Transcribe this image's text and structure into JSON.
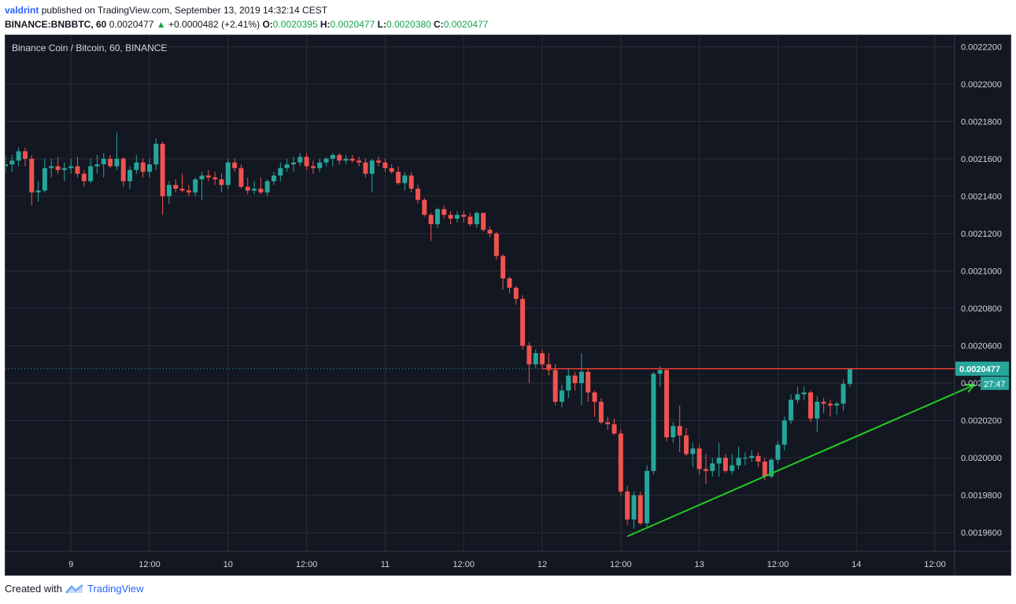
{
  "header": {
    "author": "valdrint",
    "published_text": "published on TradingView.com, September 13, 2019 14:32:14 CEST",
    "symbol": "BINANCE:BNBBTC, 60",
    "last_price": "0.0020477",
    "change_arrow": "▲",
    "change": "+0.0000482 (+2.41%)",
    "open_label": "O:",
    "open_value": "0.0020395",
    "high_label": "H:",
    "high_value": "0.0020477",
    "low_label": "L:",
    "low_value": "0.0020380",
    "close_label": "C:",
    "close_value": "0.0020477"
  },
  "footer": {
    "created_with": "Created with",
    "brand": "TradingView"
  },
  "colors": {
    "background": "#131722",
    "grid": "#2a2e39",
    "up_candle": "#26a69a",
    "down_candle": "#ef5350",
    "resistance": "#e53935",
    "support": "#22cc22",
    "last_price_line": "#26a69a",
    "axis_text": "#d1d4dc"
  },
  "chart_data": {
    "type": "candlestick",
    "title": "Binance Coin / Bitcoin, 60, BINANCE",
    "ylim": [
      0.00195,
      0.002226
    ],
    "y_ticks": [
      "0.0019600",
      "0.0019800",
      "0.0020000",
      "0.0020200",
      "0.0020400",
      "0.0020600",
      "0.0020800",
      "0.0021000",
      "0.0021200",
      "0.0021400",
      "0.0021600",
      "0.0021800",
      "0.0022000",
      "0.0022200"
    ],
    "x_ticks": [
      {
        "label": "9",
        "t": 0
      },
      {
        "label": "12:00",
        "t": 12
      },
      {
        "label": "10",
        "t": 24
      },
      {
        "label": "12:00",
        "t": 36
      },
      {
        "label": "11",
        "t": 48
      },
      {
        "label": "12:00",
        "t": 60
      },
      {
        "label": "12",
        "t": 72
      },
      {
        "label": "12:00",
        "t": 84
      },
      {
        "label": "13",
        "t": 96
      },
      {
        "label": "12:00",
        "t": 108
      },
      {
        "label": "14",
        "t": 120
      },
      {
        "label": "12:00",
        "t": 132
      }
    ],
    "x_range": [
      -10,
      135
    ],
    "candles": [
      {
        "t": -10,
        "o": 0.002156,
        "h": 0.002162,
        "l": 0.002152,
        "c": 0.002157
      },
      {
        "t": -9,
        "o": 0.002157,
        "h": 0.002162,
        "l": 0.002153,
        "c": 0.002159
      },
      {
        "t": -8,
        "o": 0.002159,
        "h": 0.002166,
        "l": 0.002156,
        "c": 0.002164
      },
      {
        "t": -7,
        "o": 0.002164,
        "h": 0.002166,
        "l": 0.002156,
        "c": 0.00216
      },
      {
        "t": -6,
        "o": 0.00216,
        "h": 0.002162,
        "l": 0.002135,
        "c": 0.002142
      },
      {
        "t": -5,
        "o": 0.002142,
        "h": 0.002148,
        "l": 0.002137,
        "c": 0.002143
      },
      {
        "t": -4,
        "o": 0.002143,
        "h": 0.00216,
        "l": 0.002142,
        "c": 0.002155
      },
      {
        "t": -3,
        "o": 0.002155,
        "h": 0.00216,
        "l": 0.00215,
        "c": 0.002156
      },
      {
        "t": -2,
        "o": 0.002156,
        "h": 0.002161,
        "l": 0.002152,
        "c": 0.002154
      },
      {
        "t": -1,
        "o": 0.002154,
        "h": 0.002158,
        "l": 0.002148,
        "c": 0.002155
      },
      {
        "t": 0,
        "o": 0.002155,
        "h": 0.00216,
        "l": 0.002152,
        "c": 0.002156
      },
      {
        "t": 1,
        "o": 0.002156,
        "h": 0.002161,
        "l": 0.00215,
        "c": 0.002152
      },
      {
        "t": 2,
        "o": 0.002152,
        "h": 0.002154,
        "l": 0.002145,
        "c": 0.002148
      },
      {
        "t": 3,
        "o": 0.002148,
        "h": 0.00216,
        "l": 0.002147,
        "c": 0.002156
      },
      {
        "t": 4,
        "o": 0.002156,
        "h": 0.002162,
        "l": 0.002152,
        "c": 0.002157
      },
      {
        "t": 5,
        "o": 0.002157,
        "h": 0.002163,
        "l": 0.00215,
        "c": 0.00216
      },
      {
        "t": 6,
        "o": 0.00216,
        "h": 0.002162,
        "l": 0.002155,
        "c": 0.002156
      },
      {
        "t": 7,
        "o": 0.002156,
        "h": 0.002174,
        "l": 0.002154,
        "c": 0.00216
      },
      {
        "t": 8,
        "o": 0.00216,
        "h": 0.002161,
        "l": 0.002145,
        "c": 0.002148
      },
      {
        "t": 9,
        "o": 0.002148,
        "h": 0.002156,
        "l": 0.002144,
        "c": 0.002154
      },
      {
        "t": 10,
        "o": 0.002154,
        "h": 0.002162,
        "l": 0.002152,
        "c": 0.002158
      },
      {
        "t": 11,
        "o": 0.002158,
        "h": 0.00216,
        "l": 0.00215,
        "c": 0.002153
      },
      {
        "t": 12,
        "o": 0.002153,
        "h": 0.00216,
        "l": 0.00215,
        "c": 0.002157
      },
      {
        "t": 13,
        "o": 0.002157,
        "h": 0.002171,
        "l": 0.002154,
        "c": 0.002168
      },
      {
        "t": 14,
        "o": 0.002168,
        "h": 0.002169,
        "l": 0.00213,
        "c": 0.00214
      },
      {
        "t": 15,
        "o": 0.00214,
        "h": 0.002148,
        "l": 0.002136,
        "c": 0.002146
      },
      {
        "t": 16,
        "o": 0.002146,
        "h": 0.002149,
        "l": 0.002142,
        "c": 0.002144
      },
      {
        "t": 17,
        "o": 0.002144,
        "h": 0.002152,
        "l": 0.002142,
        "c": 0.002143
      },
      {
        "t": 18,
        "o": 0.002143,
        "h": 0.002146,
        "l": 0.00214,
        "c": 0.002142
      },
      {
        "t": 19,
        "o": 0.002142,
        "h": 0.00215,
        "l": 0.00214,
        "c": 0.002149
      },
      {
        "t": 20,
        "o": 0.002149,
        "h": 0.002153,
        "l": 0.002138,
        "c": 0.002151
      },
      {
        "t": 21,
        "o": 0.002151,
        "h": 0.002154,
        "l": 0.002148,
        "c": 0.00215
      },
      {
        "t": 22,
        "o": 0.00215,
        "h": 0.002153,
        "l": 0.002146,
        "c": 0.002149
      },
      {
        "t": 23,
        "o": 0.002149,
        "h": 0.002152,
        "l": 0.002142,
        "c": 0.002146
      },
      {
        "t": 24,
        "o": 0.002146,
        "h": 0.00216,
        "l": 0.002144,
        "c": 0.002158
      },
      {
        "t": 25,
        "o": 0.002158,
        "h": 0.00216,
        "l": 0.002153,
        "c": 0.002155
      },
      {
        "t": 26,
        "o": 0.002155,
        "h": 0.002157,
        "l": 0.002144,
        "c": 0.002145
      },
      {
        "t": 27,
        "o": 0.002145,
        "h": 0.00215,
        "l": 0.002141,
        "c": 0.002143
      },
      {
        "t": 28,
        "o": 0.002143,
        "h": 0.002148,
        "l": 0.002141,
        "c": 0.002144
      },
      {
        "t": 29,
        "o": 0.002144,
        "h": 0.00215,
        "l": 0.002141,
        "c": 0.002142
      },
      {
        "t": 30,
        "o": 0.002142,
        "h": 0.002149,
        "l": 0.00214,
        "c": 0.002148
      },
      {
        "t": 31,
        "o": 0.002148,
        "h": 0.002153,
        "l": 0.002146,
        "c": 0.002151
      },
      {
        "t": 32,
        "o": 0.002151,
        "h": 0.002158,
        "l": 0.002148,
        "c": 0.002155
      },
      {
        "t": 33,
        "o": 0.002155,
        "h": 0.00216,
        "l": 0.002153,
        "c": 0.002157
      },
      {
        "t": 34,
        "o": 0.002157,
        "h": 0.002161,
        "l": 0.002153,
        "c": 0.002158
      },
      {
        "t": 35,
        "o": 0.002158,
        "h": 0.002163,
        "l": 0.002156,
        "c": 0.002161
      },
      {
        "t": 36,
        "o": 0.002161,
        "h": 0.002163,
        "l": 0.002154,
        "c": 0.002156
      },
      {
        "t": 37,
        "o": 0.002156,
        "h": 0.002159,
        "l": 0.002152,
        "c": 0.002155
      },
      {
        "t": 38,
        "o": 0.002155,
        "h": 0.00216,
        "l": 0.002153,
        "c": 0.002158
      },
      {
        "t": 39,
        "o": 0.002158,
        "h": 0.002161,
        "l": 0.002156,
        "c": 0.00216
      },
      {
        "t": 40,
        "o": 0.00216,
        "h": 0.002163,
        "l": 0.002156,
        "c": 0.002162
      },
      {
        "t": 41,
        "o": 0.002162,
        "h": 0.002163,
        "l": 0.002157,
        "c": 0.002159
      },
      {
        "t": 42,
        "o": 0.002159,
        "h": 0.002162,
        "l": 0.002157,
        "c": 0.00216
      },
      {
        "t": 43,
        "o": 0.00216,
        "h": 0.002162,
        "l": 0.002158,
        "c": 0.002159
      },
      {
        "t": 44,
        "o": 0.002159,
        "h": 0.002161,
        "l": 0.002156,
        "c": 0.002158
      },
      {
        "t": 45,
        "o": 0.002158,
        "h": 0.00216,
        "l": 0.00215,
        "c": 0.002152
      },
      {
        "t": 46,
        "o": 0.002152,
        "h": 0.00216,
        "l": 0.002142,
        "c": 0.002159
      },
      {
        "t": 47,
        "o": 0.002159,
        "h": 0.002161,
        "l": 0.002156,
        "c": 0.002158
      },
      {
        "t": 48,
        "o": 0.002158,
        "h": 0.00216,
        "l": 0.002153,
        "c": 0.002155
      },
      {
        "t": 49,
        "o": 0.002155,
        "h": 0.002157,
        "l": 0.002152,
        "c": 0.002153
      },
      {
        "t": 50,
        "o": 0.002153,
        "h": 0.002156,
        "l": 0.002146,
        "c": 0.002147
      },
      {
        "t": 51,
        "o": 0.002147,
        "h": 0.002153,
        "l": 0.002143,
        "c": 0.002151
      },
      {
        "t": 52,
        "o": 0.002151,
        "h": 0.002153,
        "l": 0.002142,
        "c": 0.002144
      },
      {
        "t": 53,
        "o": 0.002144,
        "h": 0.002146,
        "l": 0.002136,
        "c": 0.002138
      },
      {
        "t": 54,
        "o": 0.002138,
        "h": 0.002139,
        "l": 0.002129,
        "c": 0.00213
      },
      {
        "t": 55,
        "o": 0.00213,
        "h": 0.002131,
        "l": 0.002116,
        "c": 0.002125
      },
      {
        "t": 56,
        "o": 0.002125,
        "h": 0.002134,
        "l": 0.002123,
        "c": 0.002133
      },
      {
        "t": 57,
        "o": 0.002133,
        "h": 0.002135,
        "l": 0.002128,
        "c": 0.00213
      },
      {
        "t": 58,
        "o": 0.00213,
        "h": 0.002132,
        "l": 0.002125,
        "c": 0.002128
      },
      {
        "t": 59,
        "o": 0.002128,
        "h": 0.002132,
        "l": 0.002126,
        "c": 0.00213
      },
      {
        "t": 60,
        "o": 0.00213,
        "h": 0.002132,
        "l": 0.002126,
        "c": 0.002129
      },
      {
        "t": 61,
        "o": 0.002129,
        "h": 0.002131,
        "l": 0.002124,
        "c": 0.002125
      },
      {
        "t": 62,
        "o": 0.002125,
        "h": 0.002132,
        "l": 0.002123,
        "c": 0.002131
      },
      {
        "t": 63,
        "o": 0.002131,
        "h": 0.002131,
        "l": 0.002121,
        "c": 0.002122
      },
      {
        "t": 64,
        "o": 0.002122,
        "h": 0.002124,
        "l": 0.002118,
        "c": 0.00212
      },
      {
        "t": 65,
        "o": 0.00212,
        "h": 0.002121,
        "l": 0.002106,
        "c": 0.002108
      },
      {
        "t": 66,
        "o": 0.002108,
        "h": 0.002109,
        "l": 0.00209,
        "c": 0.002096
      },
      {
        "t": 67,
        "o": 0.002096,
        "h": 0.002097,
        "l": 0.002088,
        "c": 0.002091
      },
      {
        "t": 68,
        "o": 0.002091,
        "h": 0.002092,
        "l": 0.002082,
        "c": 0.002085
      },
      {
        "t": 69,
        "o": 0.002085,
        "h": 0.002087,
        "l": 0.002058,
        "c": 0.00206
      },
      {
        "t": 70,
        "o": 0.00206,
        "h": 0.002062,
        "l": 0.00204,
        "c": 0.00205
      },
      {
        "t": 71,
        "o": 0.00205,
        "h": 0.002058,
        "l": 0.002048,
        "c": 0.002056
      },
      {
        "t": 72,
        "o": 0.002056,
        "h": 0.002058,
        "l": 0.002048,
        "c": 0.00205
      },
      {
        "t": 73,
        "o": 0.00205,
        "h": 0.002056,
        "l": 0.002044,
        "c": 0.002047
      },
      {
        "t": 74,
        "o": 0.002047,
        "h": 0.00205,
        "l": 0.002028,
        "c": 0.00203
      },
      {
        "t": 75,
        "o": 0.00203,
        "h": 0.002039,
        "l": 0.002027,
        "c": 0.002036
      },
      {
        "t": 76,
        "o": 0.002036,
        "h": 0.002048,
        "l": 0.002032,
        "c": 0.002044
      },
      {
        "t": 77,
        "o": 0.002044,
        "h": 0.002046,
        "l": 0.002036,
        "c": 0.00204
      },
      {
        "t": 78,
        "o": 0.00204,
        "h": 0.002056,
        "l": 0.002028,
        "c": 0.002046
      },
      {
        "t": 79,
        "o": 0.002046,
        "h": 0.002048,
        "l": 0.00203,
        "c": 0.002035
      },
      {
        "t": 80,
        "o": 0.002035,
        "h": 0.002036,
        "l": 0.002022,
        "c": 0.00203
      },
      {
        "t": 81,
        "o": 0.00203,
        "h": 0.002032,
        "l": 0.002018,
        "c": 0.002019
      },
      {
        "t": 82,
        "o": 0.002019,
        "h": 0.002022,
        "l": 0.002015,
        "c": 0.002018
      },
      {
        "t": 83,
        "o": 0.002018,
        "h": 0.002021,
        "l": 0.002012,
        "c": 0.002013
      },
      {
        "t": 84,
        "o": 0.002013,
        "h": 0.002015,
        "l": 0.00198,
        "c": 0.001982
      },
      {
        "t": 85,
        "o": 0.001982,
        "h": 0.001985,
        "l": 0.001964,
        "c": 0.001967
      },
      {
        "t": 86,
        "o": 0.001967,
        "h": 0.001982,
        "l": 0.001962,
        "c": 0.00198
      },
      {
        "t": 87,
        "o": 0.00198,
        "h": 0.001982,
        "l": 0.001964,
        "c": 0.001965
      },
      {
        "t": 88,
        "o": 0.001965,
        "h": 0.001996,
        "l": 0.001963,
        "c": 0.001993
      },
      {
        "t": 89,
        "o": 0.001993,
        "h": 0.002046,
        "l": 0.001991,
        "c": 0.002045
      },
      {
        "t": 90,
        "o": 0.002045,
        "h": 0.002049,
        "l": 0.002038,
        "c": 0.002047
      },
      {
        "t": 91,
        "o": 0.002047,
        "h": 0.002048,
        "l": 0.002009,
        "c": 0.002011
      },
      {
        "t": 92,
        "o": 0.002011,
        "h": 0.002019,
        "l": 0.002008,
        "c": 0.002017
      },
      {
        "t": 93,
        "o": 0.002017,
        "h": 0.002028,
        "l": 0.002003,
        "c": 0.002012
      },
      {
        "t": 94,
        "o": 0.002012,
        "h": 0.002016,
        "l": 0.002001,
        "c": 0.002002
      },
      {
        "t": 95,
        "o": 0.002002,
        "h": 0.002008,
        "l": 0.001995,
        "c": 0.002005
      },
      {
        "t": 96,
        "o": 0.002005,
        "h": 0.002007,
        "l": 0.001991,
        "c": 0.001994
      },
      {
        "t": 97,
        "o": 0.001994,
        "h": 0.002002,
        "l": 0.001986,
        "c": 0.001993
      },
      {
        "t": 98,
        "o": 0.001993,
        "h": 0.002,
        "l": 0.00199,
        "c": 0.001997
      },
      {
        "t": 99,
        "o": 0.001997,
        "h": 0.002008,
        "l": 0.00199,
        "c": 0.002
      },
      {
        "t": 100,
        "o": 0.002,
        "h": 0.002002,
        "l": 0.001992,
        "c": 0.001993
      },
      {
        "t": 101,
        "o": 0.001993,
        "h": 0.002002,
        "l": 0.001991,
        "c": 0.001996
      },
      {
        "t": 102,
        "o": 0.001996,
        "h": 0.002006,
        "l": 0.001994,
        "c": 0.002
      },
      {
        "t": 103,
        "o": 0.002,
        "h": 0.002003,
        "l": 0.001996,
        "c": 0.002
      },
      {
        "t": 104,
        "o": 0.002,
        "h": 0.002004,
        "l": 0.001998,
        "c": 0.002001
      },
      {
        "t": 105,
        "o": 0.002001,
        "h": 0.002003,
        "l": 0.001995,
        "c": 0.001998
      },
      {
        "t": 106,
        "o": 0.001998,
        "h": 0.002,
        "l": 0.001988,
        "c": 0.00199
      },
      {
        "t": 107,
        "o": 0.00199,
        "h": 0.002,
        "l": 0.001989,
        "c": 0.001999
      },
      {
        "t": 108,
        "o": 0.001999,
        "h": 0.002009,
        "l": 0.001997,
        "c": 0.002007
      },
      {
        "t": 109,
        "o": 0.002007,
        "h": 0.002022,
        "l": 0.002004,
        "c": 0.00202
      },
      {
        "t": 110,
        "o": 0.00202,
        "h": 0.002034,
        "l": 0.002018,
        "c": 0.002031
      },
      {
        "t": 111,
        "o": 0.002031,
        "h": 0.002038,
        "l": 0.002029,
        "c": 0.002034
      },
      {
        "t": 112,
        "o": 0.002034,
        "h": 0.002038,
        "l": 0.002031,
        "c": 0.002035
      },
      {
        "t": 113,
        "o": 0.002035,
        "h": 0.002036,
        "l": 0.002019,
        "c": 0.002021
      },
      {
        "t": 114,
        "o": 0.002021,
        "h": 0.002033,
        "l": 0.002014,
        "c": 0.00203
      },
      {
        "t": 115,
        "o": 0.00203,
        "h": 0.002032,
        "l": 0.002024,
        "c": 0.002029
      },
      {
        "t": 116,
        "o": 0.002029,
        "h": 0.002031,
        "l": 0.002022,
        "c": 0.002028
      },
      {
        "t": 117,
        "o": 0.002028,
        "h": 0.00203,
        "l": 0.002023,
        "c": 0.002029
      },
      {
        "t": 118,
        "o": 0.002029,
        "h": 0.002042,
        "l": 0.002025,
        "c": 0.0020395
      },
      {
        "t": 119,
        "o": 0.0020395,
        "h": 0.0020477,
        "l": 0.002038,
        "c": 0.0020477
      }
    ],
    "annotations": {
      "resistance": {
        "x0": 72,
        "x1": 138,
        "y": 0.0020477
      },
      "support": {
        "x0": 85,
        "y0": 0.001958,
        "x1": 138,
        "y1": 0.002039
      },
      "last_price": {
        "value": "0.0020477",
        "countdown": "27:47"
      }
    }
  }
}
